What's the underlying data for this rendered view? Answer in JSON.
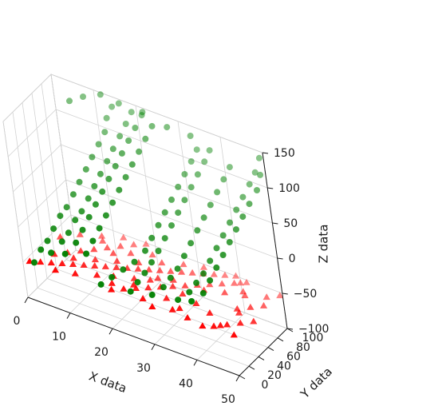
{
  "chart_data": {
    "type": "scatter",
    "projection": "3d",
    "title": "",
    "xlabel": "X data",
    "ylabel": "Y data",
    "zlabel": "Z data",
    "xlim": [
      0,
      50
    ],
    "ylim": [
      0,
      100
    ],
    "zlim": [
      -100,
      150
    ],
    "x_ticks": [
      "0",
      "10",
      "20",
      "30",
      "40",
      "50"
    ],
    "y_ticks": [
      "0",
      "20",
      "40",
      "60",
      "80",
      "100"
    ],
    "z_ticks": [
      "−100",
      "−50",
      "0",
      "50",
      "100",
      "150"
    ],
    "grid": true,
    "pane_color": "#f2f2f2",
    "series": [
      {
        "marker": "circle",
        "color": "#008000",
        "points": [
          [
            2,
            6,
            -50
          ],
          [
            3,
            14,
            -35
          ],
          [
            4,
            21,
            -25
          ],
          [
            5,
            28,
            -10
          ],
          [
            6,
            36,
            5
          ],
          [
            7,
            43,
            15
          ],
          [
            8,
            51,
            30
          ],
          [
            9,
            58,
            45
          ],
          [
            10,
            66,
            60
          ],
          [
            11,
            73,
            75
          ],
          [
            12,
            81,
            90
          ],
          [
            13,
            88,
            105
          ],
          [
            13,
            95,
            120
          ],
          [
            14,
            100,
            135
          ],
          [
            6,
            10,
            -30
          ],
          [
            8,
            18,
            -15
          ],
          [
            9,
            25,
            -5
          ],
          [
            10,
            33,
            10
          ],
          [
            11,
            40,
            20
          ],
          [
            12,
            48,
            35
          ],
          [
            13,
            55,
            50
          ],
          [
            14,
            62,
            65
          ],
          [
            15,
            70,
            80
          ],
          [
            16,
            77,
            95
          ],
          [
            17,
            85,
            110
          ],
          [
            18,
            92,
            125
          ],
          [
            19,
            98,
            140
          ],
          [
            10,
            6,
            -20
          ],
          [
            12,
            14,
            -5
          ],
          [
            13,
            22,
            10
          ],
          [
            14,
            30,
            25
          ],
          [
            15,
            38,
            40
          ],
          [
            16,
            46,
            55
          ],
          [
            17,
            54,
            70
          ],
          [
            18,
            62,
            85
          ],
          [
            19,
            70,
            100
          ],
          [
            20,
            78,
            115
          ],
          [
            21,
            86,
            130
          ],
          [
            22,
            94,
            145
          ],
          [
            15,
            8,
            -10
          ],
          [
            16,
            16,
            5
          ],
          [
            17,
            24,
            20
          ],
          [
            18,
            32,
            35
          ],
          [
            19,
            40,
            50
          ],
          [
            20,
            48,
            65
          ],
          [
            21,
            56,
            80
          ],
          [
            22,
            64,
            95
          ],
          [
            23,
            72,
            110
          ],
          [
            24,
            80,
            125
          ],
          [
            25,
            88,
            140
          ],
          [
            18,
            5,
            -45
          ],
          [
            20,
            12,
            -35
          ],
          [
            22,
            20,
            -25
          ],
          [
            24,
            28,
            -15
          ],
          [
            26,
            36,
            0
          ],
          [
            27,
            44,
            15
          ],
          [
            28,
            52,
            30
          ],
          [
            29,
            60,
            45
          ],
          [
            30,
            68,
            60
          ],
          [
            31,
            76,
            75
          ],
          [
            32,
            84,
            90
          ],
          [
            33,
            92,
            105
          ],
          [
            34,
            98,
            120
          ],
          [
            25,
            6,
            -40
          ],
          [
            26,
            14,
            -30
          ],
          [
            27,
            22,
            -20
          ],
          [
            28,
            30,
            -8
          ],
          [
            29,
            38,
            5
          ],
          [
            30,
            46,
            20
          ],
          [
            31,
            54,
            35
          ],
          [
            32,
            62,
            50
          ],
          [
            33,
            70,
            65
          ],
          [
            34,
            78,
            80
          ],
          [
            35,
            86,
            95
          ],
          [
            36,
            94,
            110
          ],
          [
            37,
            99,
            125
          ],
          [
            30,
            8,
            -35
          ],
          [
            32,
            16,
            -25
          ],
          [
            33,
            24,
            -15
          ],
          [
            34,
            32,
            -5
          ],
          [
            35,
            40,
            10
          ],
          [
            36,
            48,
            25
          ],
          [
            37,
            56,
            40
          ],
          [
            38,
            64,
            55
          ],
          [
            39,
            72,
            70
          ],
          [
            40,
            80,
            85
          ],
          [
            41,
            88,
            100
          ],
          [
            42,
            95,
            115
          ],
          [
            36,
            10,
            -30
          ],
          [
            38,
            18,
            -20
          ],
          [
            39,
            26,
            -10
          ],
          [
            40,
            34,
            0
          ],
          [
            41,
            42,
            15
          ],
          [
            42,
            50,
            30
          ],
          [
            43,
            58,
            45
          ],
          [
            44,
            66,
            60
          ],
          [
            45,
            74,
            75
          ],
          [
            46,
            82,
            90
          ],
          [
            47,
            90,
            105
          ],
          [
            48,
            96,
            120
          ],
          [
            40,
            5,
            -20
          ],
          [
            42,
            14,
            -10
          ],
          [
            43,
            22,
            5
          ],
          [
            44,
            30,
            20
          ],
          [
            45,
            38,
            35
          ],
          [
            46,
            46,
            50
          ],
          [
            47,
            54,
            65
          ],
          [
            48,
            62,
            80
          ],
          [
            49,
            70,
            95
          ],
          [
            50,
            80,
            110
          ],
          [
            50,
            90,
            125
          ],
          [
            49,
            100,
            140
          ],
          [
            5,
            90,
            130
          ],
          [
            8,
            94,
            140
          ],
          [
            12,
            97,
            150
          ],
          [
            16,
            99,
            145
          ],
          [
            22,
            96,
            148
          ],
          [
            28,
            93,
            142
          ],
          [
            33,
            97,
            138
          ]
        ]
      },
      {
        "marker": "triangle",
        "color": "#ff0000",
        "points": [
          [
            1,
            5,
            -50
          ],
          [
            3,
            10,
            -50
          ],
          [
            5,
            15,
            -50
          ],
          [
            7,
            20,
            -50
          ],
          [
            9,
            25,
            -50
          ],
          [
            11,
            30,
            -50
          ],
          [
            13,
            35,
            -50
          ],
          [
            15,
            40,
            -50
          ],
          [
            17,
            45,
            -50
          ],
          [
            19,
            50,
            -50
          ],
          [
            21,
            55,
            -50
          ],
          [
            23,
            60,
            -50
          ],
          [
            25,
            65,
            -50
          ],
          [
            27,
            70,
            -50
          ],
          [
            29,
            75,
            -50
          ],
          [
            31,
            80,
            -50
          ],
          [
            33,
            85,
            -50
          ],
          [
            35,
            90,
            -50
          ],
          [
            37,
            95,
            -50
          ],
          [
            4,
            30,
            -50
          ],
          [
            6,
            40,
            -50
          ],
          [
            8,
            50,
            -50
          ],
          [
            10,
            60,
            -50
          ],
          [
            12,
            70,
            -50
          ],
          [
            14,
            80,
            -50
          ],
          [
            16,
            90,
            -50
          ],
          [
            18,
            98,
            -50
          ],
          [
            20,
            8,
            -50
          ],
          [
            22,
            16,
            -50
          ],
          [
            24,
            24,
            -50
          ],
          [
            26,
            32,
            -50
          ],
          [
            28,
            40,
            -50
          ],
          [
            30,
            48,
            -50
          ],
          [
            32,
            56,
            -50
          ],
          [
            34,
            64,
            -50
          ],
          [
            36,
            72,
            -50
          ],
          [
            38,
            80,
            -50
          ],
          [
            40,
            88,
            -50
          ],
          [
            42,
            96,
            -50
          ],
          [
            44,
            10,
            -50
          ],
          [
            46,
            20,
            -50
          ],
          [
            48,
            30,
            -50
          ],
          [
            50,
            40,
            -50
          ],
          [
            45,
            50,
            -50
          ],
          [
            47,
            60,
            -50
          ],
          [
            49,
            70,
            -50
          ],
          [
            43,
            80,
            -50
          ],
          [
            41,
            92,
            -50
          ],
          [
            39,
            100,
            -50
          ],
          [
            35,
            18,
            -50
          ],
          [
            31,
            26,
            -50
          ],
          [
            27,
            12,
            -50
          ],
          [
            23,
            28,
            -50
          ],
          [
            19,
            18,
            -50
          ],
          [
            15,
            22,
            -50
          ],
          [
            11,
            12,
            -50
          ],
          [
            7,
            6,
            -50
          ],
          [
            25,
            45,
            -50
          ],
          [
            29,
            58,
            -50
          ],
          [
            33,
            42,
            -50
          ],
          [
            37,
            35,
            -50
          ],
          [
            41,
            28,
            -50
          ],
          [
            45,
            15,
            -50
          ],
          [
            49,
            8,
            -50
          ],
          [
            20,
            65,
            -50
          ],
          [
            16,
            55,
            -50
          ],
          [
            12,
            45,
            -50
          ],
          [
            8,
            35,
            -50
          ],
          [
            24,
            78,
            -50
          ],
          [
            28,
            88,
            -50
          ],
          [
            32,
            95,
            -50
          ],
          [
            36,
            60,
            -50
          ],
          [
            40,
            68,
            -50
          ],
          [
            44,
            75,
            -50
          ],
          [
            48,
            85,
            -50
          ],
          [
            50,
            95,
            -50
          ],
          [
            2,
            60,
            -50
          ],
          [
            5,
            75,
            -50
          ],
          [
            9,
            85,
            -50
          ],
          [
            13,
            95,
            -50
          ],
          [
            17,
            75,
            -50
          ],
          [
            21,
            85,
            -50
          ],
          [
            26,
            52,
            -50
          ],
          [
            30,
            5,
            -50
          ],
          [
            34,
            12,
            -50
          ],
          [
            38,
            8,
            -50
          ],
          [
            42,
            4,
            -50
          ],
          [
            46,
            45,
            -50
          ],
          [
            22,
            38,
            -50
          ],
          [
            18,
            30,
            -50
          ],
          [
            14,
            65,
            -50
          ],
          [
            10,
            78,
            -50
          ]
        ]
      }
    ]
  }
}
